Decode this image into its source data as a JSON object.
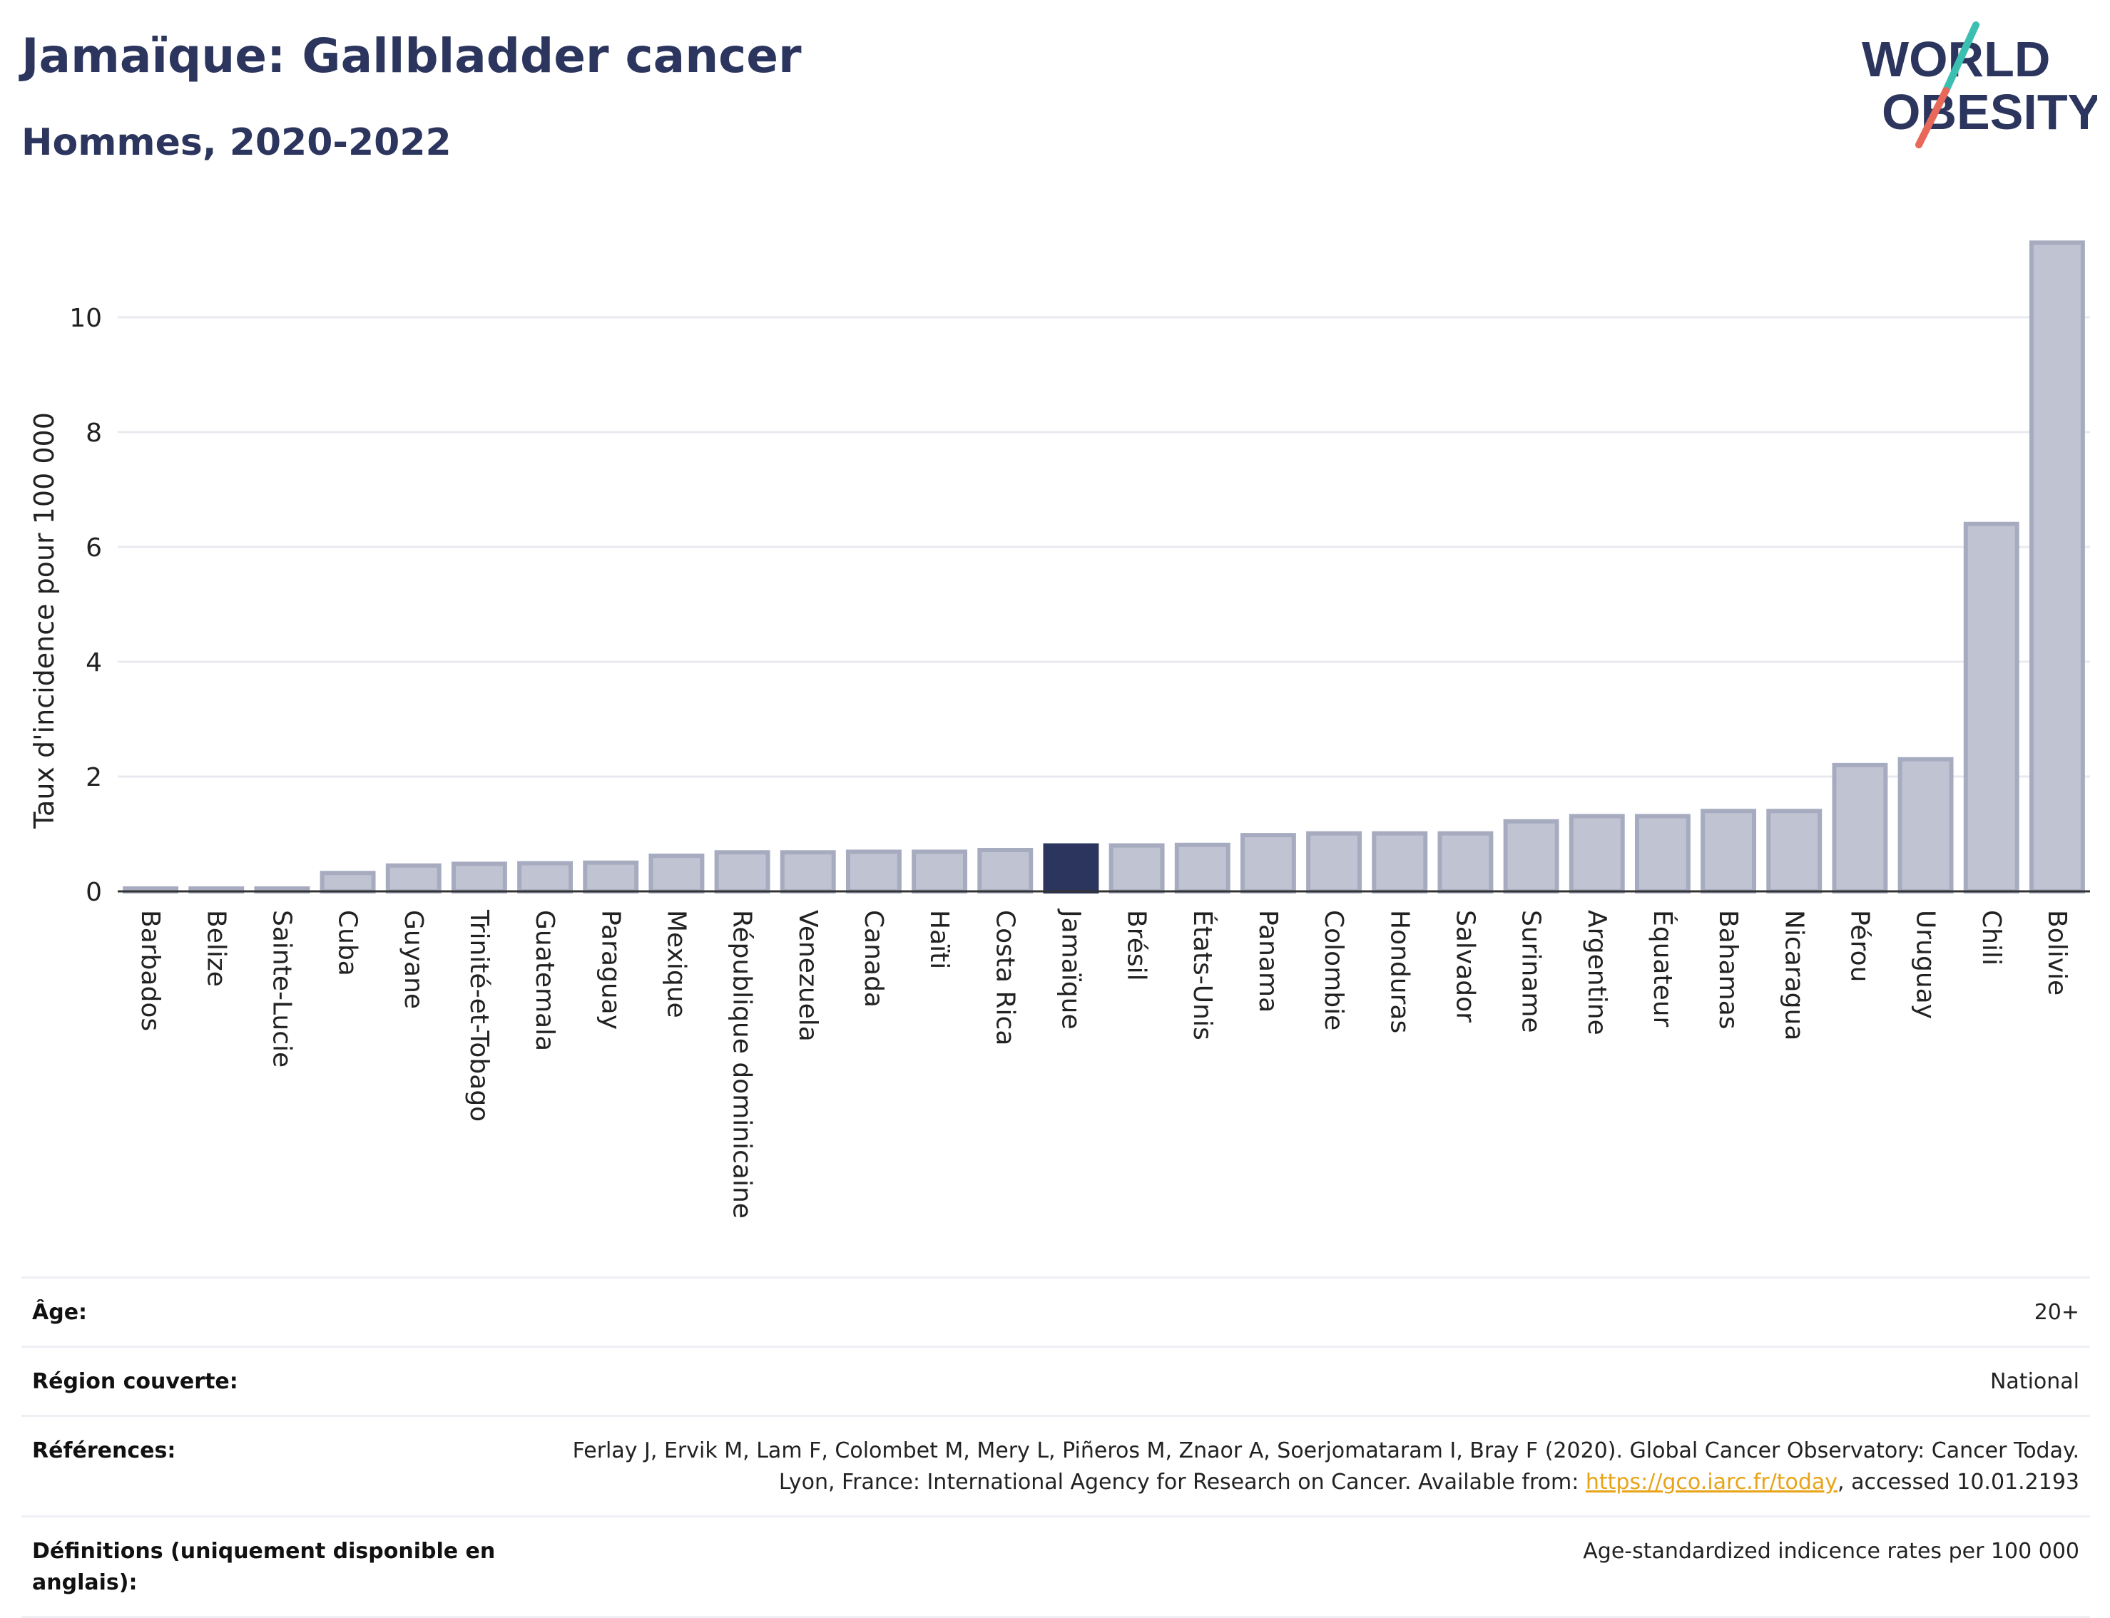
{
  "header": {
    "title": "Jamaïque: Gallbladder cancer",
    "subtitle": "Hommes, 2020-2022"
  },
  "logo": {
    "line1": "WORLD",
    "line2": "OBESITY",
    "colors": {
      "text": "#2b355e",
      "slash_top": "#3bbfb1",
      "slash_bottom": "#e8685a"
    }
  },
  "colors": {
    "bar": "#c0c3d1",
    "bar_stroke": "#a6abbf",
    "highlight": "#2b355e",
    "grid": "#e8eaf0",
    "axis": "#333333"
  },
  "chart_data": {
    "type": "bar",
    "highlight": "Jamaïque",
    "categories": [
      "Barbados",
      "Belize",
      "Sainte-Lucie",
      "Cuba",
      "Guyane",
      "Trinité-et-Tobago",
      "Guatemala",
      "Paraguay",
      "Mexique",
      "République dominicaine",
      "Venezuela",
      "Canada",
      "Haïti",
      "Costa Rica",
      "Jamaïque",
      "Brésil",
      "États-Unis",
      "Panama",
      "Colombie",
      "Honduras",
      "Salvador",
      "Suriname",
      "Argentine",
      "Équateur",
      "Bahamas",
      "Nicaragua",
      "Pérou",
      "Uruguay",
      "Chili",
      "Bolivie"
    ],
    "values": [
      0.05,
      0.05,
      0.05,
      0.32,
      0.45,
      0.48,
      0.49,
      0.5,
      0.62,
      0.68,
      0.68,
      0.69,
      0.69,
      0.72,
      0.8,
      0.8,
      0.81,
      0.98,
      1.01,
      1.01,
      1.01,
      1.22,
      1.31,
      1.31,
      1.4,
      1.4,
      2.2,
      2.3,
      6.4,
      11.3
    ],
    "ylabel": "Taux d'incidence pour 100 000",
    "yticks": [
      0,
      2,
      4,
      6,
      8,
      10
    ],
    "ylim": [
      0,
      11.8
    ],
    "grid": true
  },
  "meta": {
    "age_label": "Âge:",
    "age_value": "20+",
    "region_label": "Région couverte:",
    "region_value": "National",
    "refs_label": "Références:",
    "refs_text_1": "Ferlay J, Ervik M, Lam F, Colombet M, Mery L, Piñeros M, Znaor A, Soerjomataram I, Bray F (2020). Global Cancer Observatory: Cancer Today. Lyon, France: International Agency for Research on Cancer. Available from: ",
    "refs_link": "https://gco.iarc.fr/today",
    "refs_text_2": ", accessed 10.01.2193",
    "defs_label": "Définitions (uniquement disponible en anglais):",
    "defs_value": "Age-standardized indicence rates per 100 000"
  }
}
